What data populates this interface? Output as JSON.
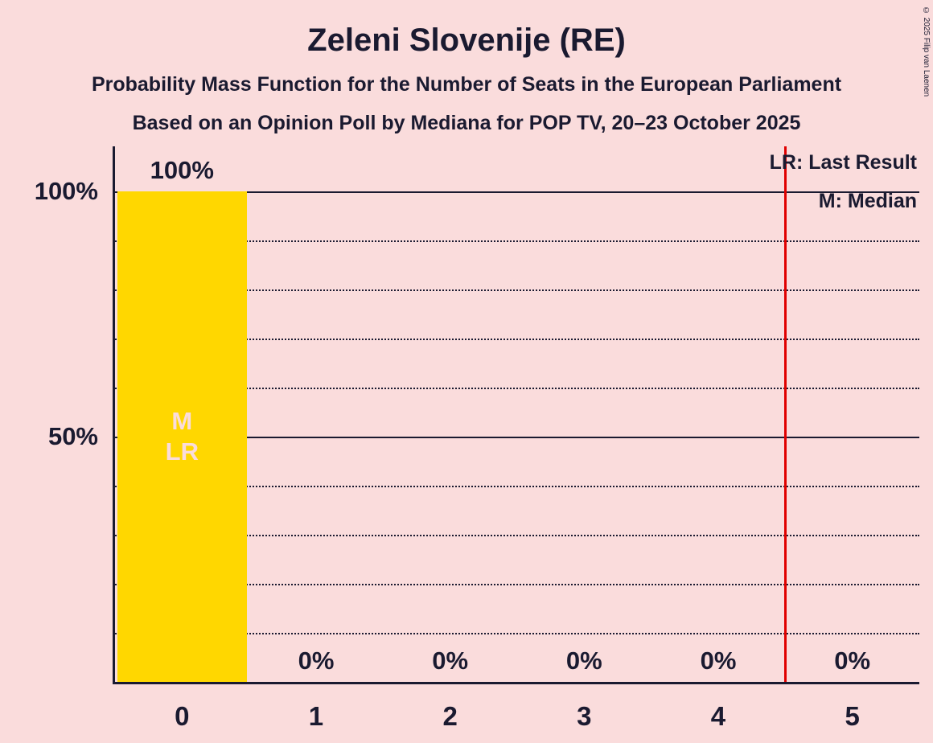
{
  "title": "Zeleni Slovenije (RE)",
  "subtitle": "Probability Mass Function for the Number of Seats in the European Parliament",
  "poll_info": "Based on an Opinion Poll by Mediana for POP TV, 20–23 October 2025",
  "copyright": "© 2025 Filip van Laenen",
  "legend": {
    "last_result": "LR: Last Result",
    "median": "M: Median"
  },
  "chart_data": {
    "type": "bar",
    "title": "Zeleni Slovenije (RE)",
    "xlabel": "Number of Seats in the European Parliament",
    "ylabel": "Probability",
    "categories": [
      "0",
      "1",
      "2",
      "3",
      "4",
      "5"
    ],
    "values": [
      100,
      0,
      0,
      0,
      0,
      0
    ],
    "value_labels": [
      "100%",
      "0%",
      "0%",
      "0%",
      "0%",
      "0%"
    ],
    "ylim": [
      0,
      100
    ],
    "yticks": [
      {
        "value": 50,
        "label": "50%"
      },
      {
        "value": 100,
        "label": "100%"
      }
    ],
    "gridlines": {
      "solid": [
        50,
        100
      ],
      "dotted": [
        10,
        20,
        30,
        40,
        60,
        70,
        80,
        90
      ]
    },
    "bar_annotations": [
      {
        "category": "0",
        "lines": [
          "M",
          "LR"
        ]
      }
    ],
    "threshold_line": {
      "x": 4.5,
      "color": "#e00000"
    },
    "bar_color": "#ffd700",
    "annotation_color": "#fadcdc",
    "background_color": "#fadcdc",
    "text_color": "#1a1a30",
    "legend_position": "top-right",
    "median_seats": "0",
    "last_result_seats": "0"
  }
}
